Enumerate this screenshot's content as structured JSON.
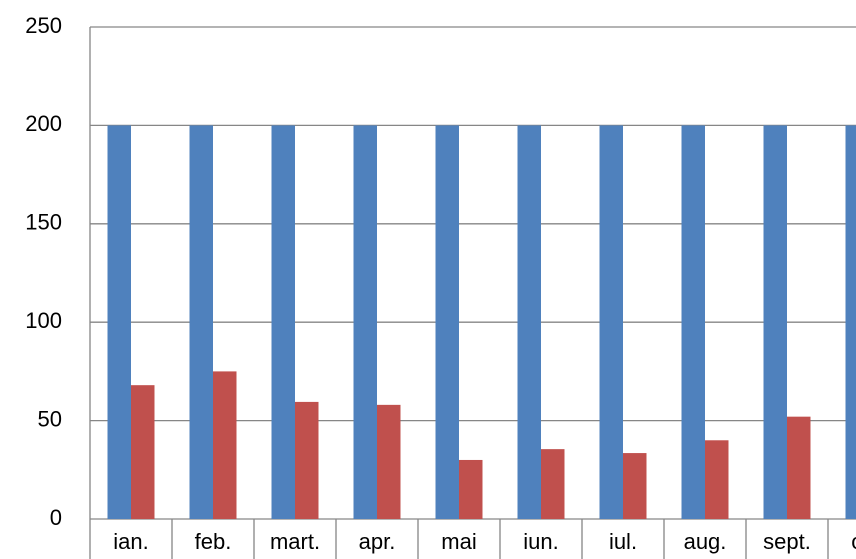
{
  "chart_data": {
    "type": "bar",
    "categories": [
      "ian.",
      "feb.",
      "mart.",
      "apr.",
      "mai",
      "iun.",
      "iul.",
      "aug.",
      "sept.",
      "oct."
    ],
    "series": [
      {
        "color": "#4f81bd",
        "values": [
          200,
          200,
          200,
          200,
          200,
          200,
          200,
          200,
          200,
          200
        ]
      },
      {
        "color": "#c0504d",
        "values": [
          68,
          75,
          59.5,
          58,
          30,
          35.5,
          33.5,
          40,
          52,
          null
        ]
      }
    ],
    "ylim": [
      0,
      250
    ],
    "yticks": [
      0,
      50,
      100,
      150,
      200,
      250
    ],
    "grid": true
  }
}
